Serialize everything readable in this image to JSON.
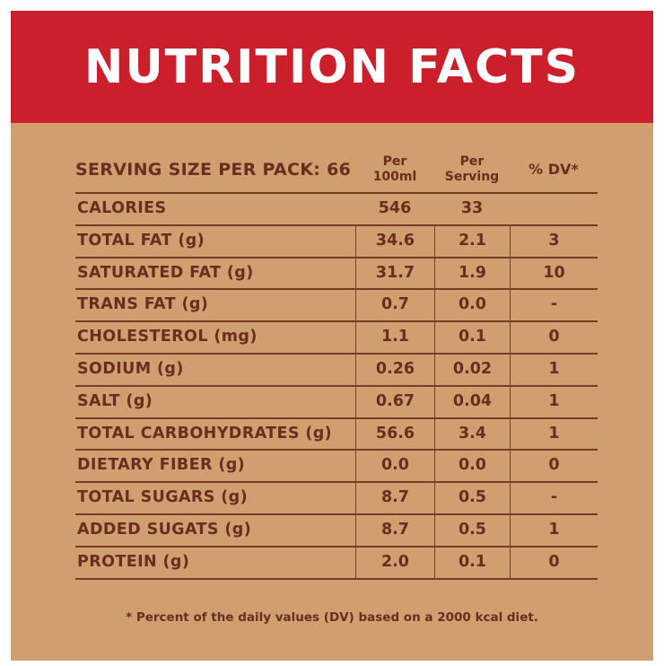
{
  "title": "NUTRITION FACTS",
  "header": {
    "serving": "SERVING SIZE PER PACK: 66",
    "col1_top": "Per",
    "col1_bottom": "100ml",
    "col2_top": "Per",
    "col2_bottom": "Serving",
    "col3": "% DV*"
  },
  "rows": [
    {
      "label": "CALORIES",
      "per100": "546",
      "perServing": "33",
      "dv": ""
    },
    {
      "label": "TOTAL FAT (g)",
      "per100": "34.6",
      "perServing": "2.1",
      "dv": "3"
    },
    {
      "label": "SATURATED FAT (g)",
      "per100": "31.7",
      "perServing": "1.9",
      "dv": "10"
    },
    {
      "label": "TRANS FAT (g)",
      "per100": "0.7",
      "perServing": "0.0",
      "dv": "-"
    },
    {
      "label": "CHOLESTEROL (mg)",
      "per100": "1.1",
      "perServing": "0.1",
      "dv": "0"
    },
    {
      "label": "SODIUM (g)",
      "per100": "0.26",
      "perServing": "0.02",
      "dv": "1"
    },
    {
      "label": "SALT (g)",
      "per100": "0.67",
      "perServing": "0.04",
      "dv": "1"
    },
    {
      "label": "TOTAL CARBOHYDRATES (g)",
      "per100": "56.6",
      "perServing": "3.4",
      "dv": "1"
    },
    {
      "label": "DIETARY FIBER (g)",
      "per100": "0.0",
      "perServing": "0.0",
      "dv": "0"
    },
    {
      "label": "TOTAL SUGARS (g)",
      "per100": "8.7",
      "perServing": "0.5",
      "dv": "-"
    },
    {
      "label": "ADDED SUGATS (g)",
      "per100": "8.7",
      "perServing": "0.5",
      "dv": "1"
    },
    {
      "label": "PROTEIN (g)",
      "per100": "2.0",
      "perServing": "0.1",
      "dv": "0"
    }
  ],
  "footnote": "* Percent of the daily values (DV) based on a 2000 kcal diet.",
  "colors": {
    "banner": "#cc1f2c",
    "background": "#cf9f70",
    "text": "#6a2d1f"
  }
}
